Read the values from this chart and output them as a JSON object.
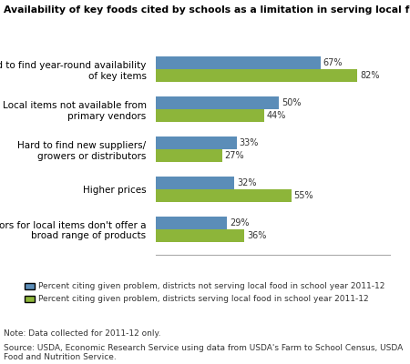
{
  "title": "Availability of key foods cited by schools as a limitation in serving local foods",
  "categories": [
    "Hard to find year-round availability\nof key items",
    "Local items not available from\nprimary vendors",
    "Hard to find new suppliers/\ngrowers or distributors",
    "Higher prices",
    "Vendors for local items don't offer a\nbroad range of products"
  ],
  "blue_values": [
    67,
    50,
    33,
    32,
    29
  ],
  "green_values": [
    82,
    44,
    27,
    55,
    36
  ],
  "blue_color": "#5b8db8",
  "green_color": "#8db53a",
  "blue_label": "Percent citing given problem, districts not serving local food in school year 2011-12",
  "green_label": "Percent citing given problem, districts serving local food in school year 2011-12",
  "note": "Note: Data collected for 2011-12 only.",
  "source": "Source: USDA, Economic Research Service using data from USDA's Farm to School Census, USDA\nFood and Nutrition Service.",
  "xlim": [
    0,
    95
  ],
  "bar_height": 0.32,
  "background_color": "#ffffff"
}
